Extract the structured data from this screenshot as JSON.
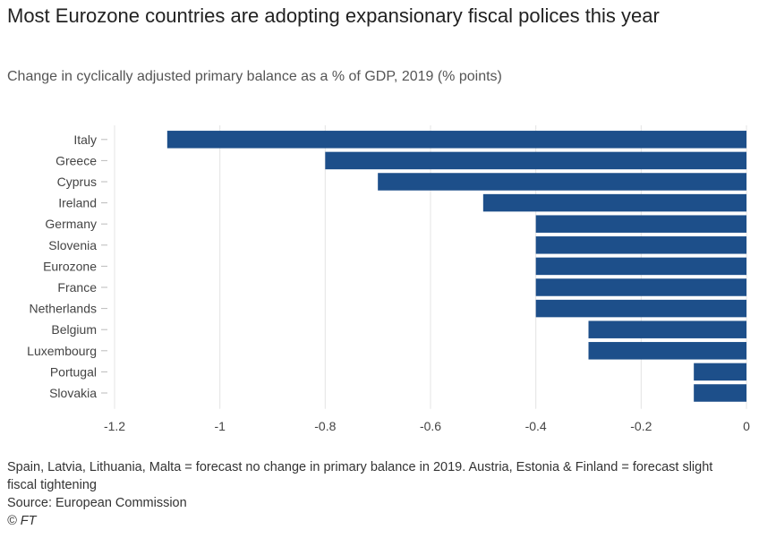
{
  "title": "Most Eurozone countries are adopting expansionary fiscal polices this year",
  "subtitle": "Change in cyclically adjusted primary balance as a % of GDP, 2019 (% points)",
  "colors": {
    "bar": "#1d4f8a",
    "grid": "#e4e4e4",
    "axis": "#444444",
    "label": "#444444"
  },
  "chart_data": {
    "type": "bar",
    "orientation": "horizontal",
    "title": "Most Eurozone countries are adopting expansionary fiscal polices this year",
    "subtitle": "Change in cyclically adjusted primary balance as a % of GDP, 2019 (% points)",
    "xlabel": "",
    "ylabel": "",
    "categories": [
      "Italy",
      "Greece",
      "Cyprus",
      "Ireland",
      "Germany",
      "Slovenia",
      "Eurozone",
      "France",
      "Netherlands",
      "Belgium",
      "Luxembourg",
      "Portugal",
      "Slovakia"
    ],
    "values": [
      -1.1,
      -0.8,
      -0.7,
      -0.5,
      -0.4,
      -0.4,
      -0.4,
      -0.4,
      -0.4,
      -0.3,
      -0.3,
      -0.1,
      -0.1
    ],
    "xlim": [
      -1.2,
      0
    ],
    "xticks": [
      -1.2,
      -1,
      -0.8,
      -0.6,
      -0.4,
      -0.2,
      0
    ],
    "xtick_labels": [
      "-1.2",
      "-1",
      "-0.8",
      "-0.6",
      "-0.4",
      "-0.2",
      "0"
    ],
    "grid": "vertical"
  },
  "footer": {
    "note": "Spain, Latvia, Lithuania, Malta = forecast no change in primary balance in 2019. Austria, Estonia & Finland = forecast slight fiscal tightening",
    "source": "Source: European Commission",
    "credit": "© FT"
  }
}
